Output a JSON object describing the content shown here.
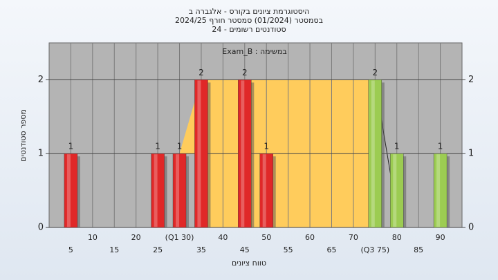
{
  "chart_data": {
    "type": "bar",
    "title": "היסטוגרמת ציונים בקורס - אלגברה ב",
    "subtitle": "בסמסטר (01/2024) סמסטר חורף 2024/25",
    "subtitle2": "סטודנטים רשומים - 24",
    "annotation": "במשימה : Exam_B",
    "x_label": "טווח ציונים",
    "y_label": "מספר סטודנטים",
    "x": [
      5,
      25,
      30,
      35,
      45,
      50,
      75,
      80,
      90
    ],
    "values": [
      1,
      1,
      1,
      2,
      2,
      1,
      2,
      1,
      1
    ],
    "colors": [
      "#e02828",
      "#e02828",
      "#e02828",
      "#e02828",
      "#e02828",
      "#e02828",
      "#9ccc52",
      "#9ccc52",
      "#9ccc52"
    ],
    "xlim": [
      0,
      95
    ],
    "xticks": [
      5,
      10,
      15,
      20,
      25,
      {
        "value": 30,
        "label": "(Q1 30)"
      },
      35,
      40,
      45,
      50,
      55,
      60,
      65,
      70,
      {
        "value": 75,
        "label": "(Q3 75)"
      },
      80,
      85,
      90
    ],
    "ylim": [
      0,
      2.5
    ],
    "yticks": [
      0,
      1,
      2
    ],
    "grid": true
  }
}
